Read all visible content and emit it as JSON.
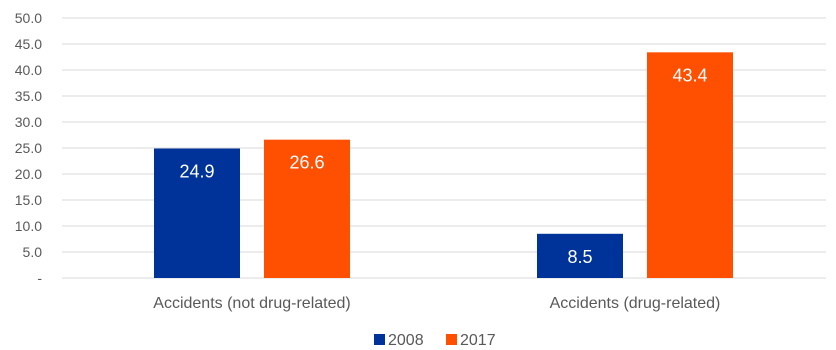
{
  "chart_data": {
    "type": "bar",
    "categories": [
      "Accidents (not drug-related)",
      "Accidents (drug-related)"
    ],
    "series": [
      {
        "name": "2008",
        "values": [
          24.9,
          8.5
        ],
        "color": "#003399"
      },
      {
        "name": "2017",
        "values": [
          26.6,
          43.4
        ],
        "color": "#FF4F00"
      }
    ],
    "data_labels": [
      [
        "24.9",
        "8.5"
      ],
      [
        "26.6",
        "43.4"
      ]
    ],
    "ylim": [
      0,
      50
    ],
    "yticks": [
      0,
      5,
      10,
      15,
      20,
      25,
      30,
      35,
      40,
      45,
      50
    ],
    "ytick_labels": [
      "-",
      "5.0",
      "10.0",
      "15.0",
      "20.0",
      "25.0",
      "30.0",
      "35.0",
      "40.0",
      "45.0",
      "50.0"
    ],
    "title": "",
    "xlabel": "",
    "ylabel": "",
    "grid": true,
    "legend_position": "bottom",
    "gridline_color": "#d9d9d9",
    "text_color": "#595959"
  }
}
